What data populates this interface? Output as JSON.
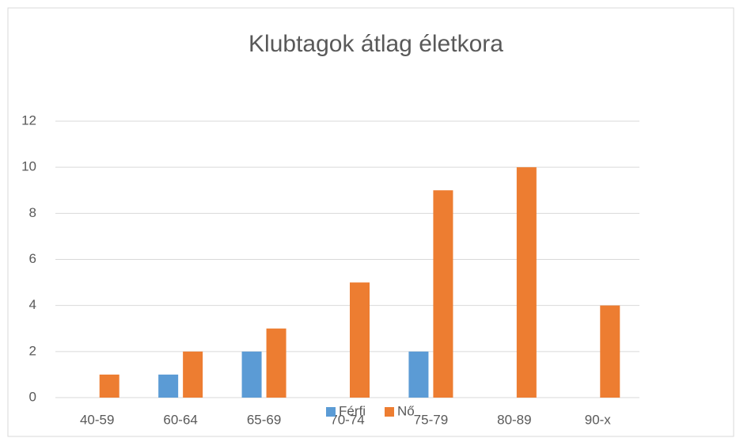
{
  "chart_data": {
    "type": "bar",
    "title": "Klubtagok átlag életkora",
    "categories": [
      "40-59",
      "60-64",
      "65-69",
      "70-74",
      "75-79",
      "80-89",
      "90-x"
    ],
    "series": [
      {
        "name": "Férfi",
        "color": "#5b9bd5",
        "values": [
          0,
          1,
          2,
          0,
          2,
          0,
          0
        ]
      },
      {
        "name": "Nő",
        "color": "#ed7d31",
        "values": [
          1,
          2,
          3,
          5,
          9,
          10,
          4
        ]
      }
    ],
    "ylim": [
      0,
      12
    ],
    "yticks": [
      0,
      2,
      4,
      6,
      8,
      10,
      12
    ],
    "grid": true,
    "legend": "bottom"
  }
}
